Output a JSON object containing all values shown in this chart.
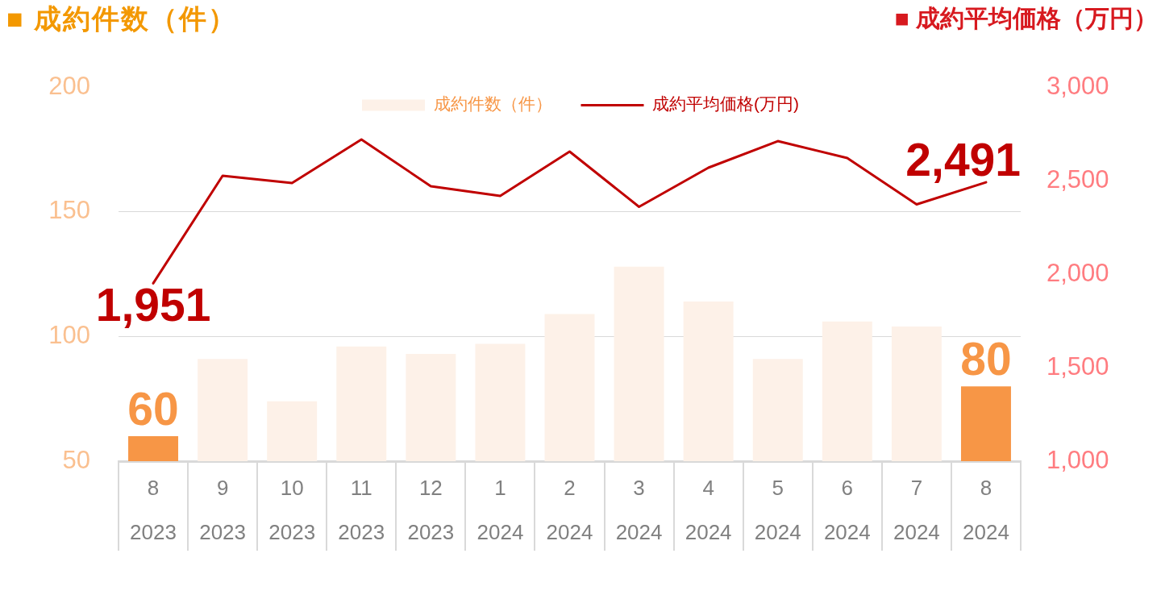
{
  "chart_data": {
    "type": "bar",
    "ylabel": "■ 成約件数（件）",
    "y2label": "■ 成約平均価格（万円）",
    "categories": [
      "8\n2023",
      "9\n2023",
      "10\n2023",
      "11\n2023",
      "12\n2023",
      "1\n2024",
      "2\n2024",
      "3\n2024",
      "4\n2024",
      "5\n2024",
      "6\n2024",
      "7\n2024",
      "8\n2024"
    ],
    "series": [
      {
        "name": "成約件数（件）",
        "color": "#fdf1e8",
        "colors": [
          "#f79646",
          "#fdf1e8",
          "#fdf1e8",
          "#fdf1e8",
          "#fdf1e8",
          "#fdf1e8",
          "#fdf1e8",
          "#fdf1e8",
          "#fdf1e8",
          "#fdf1e8",
          "#fdf1e8",
          "#fdf1e8",
          "#f79646"
        ],
        "values": [
          60,
          91,
          74,
          96,
          93,
          97,
          109,
          128,
          114,
          91,
          106,
          104,
          80
        ],
        "value_labels": [
          "60",
          null,
          null,
          null,
          null,
          null,
          null,
          null,
          null,
          null,
          null,
          null,
          "80"
        ]
      },
      {
        "name": "成約平均価格(万円)",
        "type": "line",
        "axis": "y2",
        "color": "#c00000",
        "values": [
          1951,
          2526,
          2487,
          2720,
          2470,
          2418,
          2655,
          2360,
          2569,
          2711,
          2621,
          2373,
          2491
        ],
        "value_labels": [
          "1,951",
          null,
          null,
          null,
          null,
          null,
          null,
          null,
          null,
          null,
          null,
          null,
          "2,491"
        ]
      }
    ],
    "ylim": [
      50,
      200
    ],
    "yticks": [
      50,
      100,
      150,
      200
    ],
    "y2lim": [
      1000,
      3000
    ],
    "y2ticks": [
      {
        "value": 1000,
        "label": "1,000"
      },
      {
        "value": 1500,
        "label": "1,500"
      },
      {
        "value": 2000,
        "label": "2,000"
      },
      {
        "value": 2500,
        "label": "2,500"
      },
      {
        "value": 3000,
        "label": "3,000"
      }
    ],
    "grid": "y",
    "legend": "top",
    "marker": "none"
  }
}
